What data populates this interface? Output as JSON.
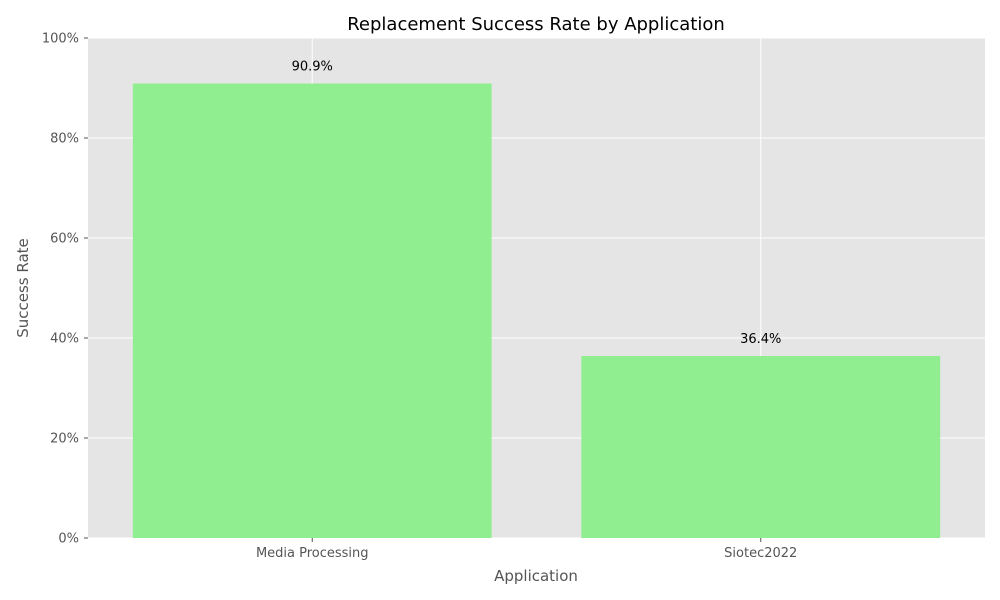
{
  "chart_data": {
    "type": "bar",
    "title": "Replacement Success Rate by Application",
    "xlabel": "Application",
    "ylabel": "Success Rate",
    "categories": [
      "Media Processing",
      "Siotec2022"
    ],
    "values": [
      90.9,
      36.4
    ],
    "value_labels": [
      "90.9%",
      "36.4%"
    ],
    "ylim": [
      0,
      100
    ],
    "yticks": [
      0,
      20,
      40,
      60,
      80,
      100
    ],
    "ytick_labels": [
      "0%",
      "20%",
      "40%",
      "60%",
      "80%",
      "100%"
    ],
    "grid": true,
    "bar_color": "#90ee90",
    "background_color": "#e5e5e5",
    "grid_color": "#ffffff"
  }
}
